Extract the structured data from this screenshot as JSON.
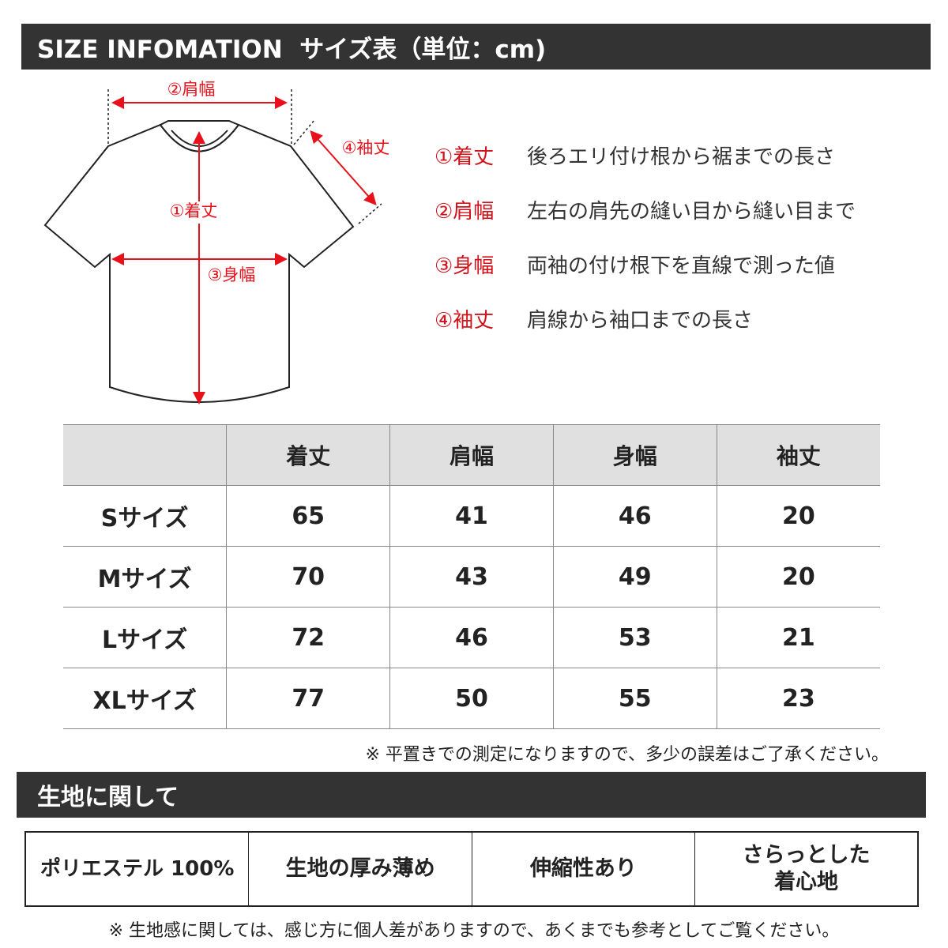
{
  "header": {
    "title": "SIZE INFOMATION  サイズ表（単位：cm)"
  },
  "diagram": {
    "labels": {
      "length": "①着丈",
      "shoulder": "②肩幅",
      "width": "③身幅",
      "sleeve": "④袖丈"
    },
    "accent": "#e8101a"
  },
  "legend": [
    {
      "key": "①着丈",
      "desc": "後ろエリ付け根から裾までの長さ"
    },
    {
      "key": "②肩幅",
      "desc": "左右の肩先の縫い目から縫い目まで"
    },
    {
      "key": "③身幅",
      "desc": "両袖の付け根下を直線で測った値"
    },
    {
      "key": "④袖丈",
      "desc": "肩線から袖口までの長さ"
    }
  ],
  "size_table": {
    "headers": [
      "",
      "着丈",
      "肩幅",
      "身幅",
      "袖丈"
    ],
    "rows": [
      [
        "Sサイズ",
        "65",
        "41",
        "46",
        "20"
      ],
      [
        "Mサイズ",
        "70",
        "43",
        "49",
        "20"
      ],
      [
        "Lサイズ",
        "72",
        "46",
        "53",
        "21"
      ],
      [
        "XLサイズ",
        "77",
        "50",
        "55",
        "23"
      ]
    ]
  },
  "size_note": "※ 平置きでの測定になりますので、多少の誤差はご了承ください。",
  "fabric": {
    "title": "生地に関して",
    "items": [
      "ポリエステル 100%",
      "生地の厚み薄め",
      "伸縮性あり",
      "さらっとした\n着心地"
    ],
    "note": "※ 生地感に関しては、感じ方に個人差がありますので、あくまでも参考としてご覧ください。"
  }
}
